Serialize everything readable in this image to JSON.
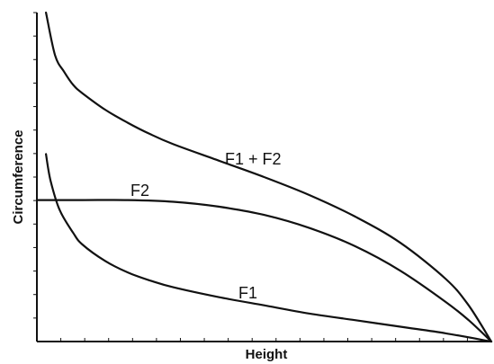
{
  "chart_data": {
    "type": "line",
    "xlabel": "Height",
    "ylabel": "Circumference",
    "xlim": [
      0,
      1
    ],
    "ylim": [
      0,
      1
    ],
    "x_tick_labels_shown": false,
    "y_tick_labels_shown": false,
    "grid": false,
    "legend": "none",
    "x_minor_ticks": 18,
    "y_minor_ticks": 14,
    "line_color": "#111111",
    "series": [
      {
        "name": "F1 + F2",
        "x": [
          0.02,
          0.04,
          0.06,
          0.08,
          0.1,
          0.15,
          0.2,
          0.25,
          0.3,
          0.4,
          0.5,
          0.6,
          0.7,
          0.8,
          0.9,
          0.95,
          1.0
        ],
        "y": [
          1.0,
          0.87,
          0.82,
          0.78,
          0.755,
          0.705,
          0.665,
          0.63,
          0.6,
          0.55,
          0.5,
          0.445,
          0.38,
          0.3,
          0.19,
          0.11,
          0.0
        ]
      },
      {
        "name": "F2",
        "x": [
          0.0,
          0.1,
          0.2,
          0.3,
          0.4,
          0.5,
          0.6,
          0.7,
          0.8,
          0.9,
          0.95,
          1.0
        ],
        "y": [
          0.43,
          0.43,
          0.43,
          0.425,
          0.41,
          0.385,
          0.345,
          0.29,
          0.215,
          0.12,
          0.065,
          0.0
        ]
      },
      {
        "name": "F1",
        "x": [
          0.02,
          0.03,
          0.05,
          0.08,
          0.1,
          0.15,
          0.2,
          0.25,
          0.3,
          0.4,
          0.5,
          0.6,
          0.7,
          0.8,
          0.9,
          1.0
        ],
        "y": [
          0.57,
          0.49,
          0.4,
          0.33,
          0.295,
          0.245,
          0.21,
          0.185,
          0.165,
          0.135,
          0.11,
          0.085,
          0.065,
          0.045,
          0.025,
          0.0
        ]
      }
    ],
    "annotations": [
      {
        "text": "F1 + F2",
        "series": "F1 + F2"
      },
      {
        "text": "F2",
        "series": "F2"
      },
      {
        "text": "F1",
        "series": "F1"
      }
    ]
  }
}
